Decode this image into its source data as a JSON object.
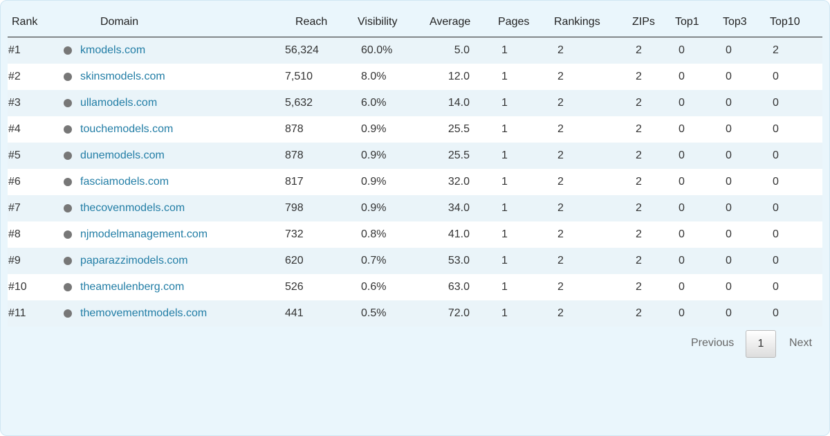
{
  "table": {
    "header": [
      "Rank",
      "Domain",
      "Reach",
      "Visibility",
      "Average",
      "Pages",
      "Rankings",
      "ZIPs",
      "Top1",
      "Top3",
      "Top10"
    ],
    "rows": [
      [
        "#1",
        "kmodels.com",
        "56,324",
        "60.0%",
        "5.0",
        "1",
        "2",
        "2",
        "0",
        "0",
        "2"
      ],
      [
        "#2",
        "skinsmodels.com",
        "7,510",
        "8.0%",
        "12.0",
        "1",
        "2",
        "2",
        "0",
        "0",
        "0"
      ],
      [
        "#3",
        "ullamodels.com",
        "5,632",
        "6.0%",
        "14.0",
        "1",
        "2",
        "2",
        "0",
        "0",
        "0"
      ],
      [
        "#4",
        "touchemodels.com",
        "878",
        "0.9%",
        "25.5",
        "1",
        "2",
        "2",
        "0",
        "0",
        "0"
      ],
      [
        "#5",
        "dunemodels.com",
        "878",
        "0.9%",
        "25.5",
        "1",
        "2",
        "2",
        "0",
        "0",
        "0"
      ],
      [
        "#6",
        "fasciamodels.com",
        "817",
        "0.9%",
        "32.0",
        "1",
        "2",
        "2",
        "0",
        "0",
        "0"
      ],
      [
        "#7",
        "thecovenmodels.com",
        "798",
        "0.9%",
        "34.0",
        "1",
        "2",
        "2",
        "0",
        "0",
        "0"
      ],
      [
        "#8",
        "njmodelmanagement.com",
        "732",
        "0.8%",
        "41.0",
        "1",
        "2",
        "2",
        "0",
        "0",
        "0"
      ],
      [
        "#9",
        "paparazzimodels.com",
        "620",
        "0.7%",
        "53.0",
        "1",
        "2",
        "2",
        "0",
        "0",
        "0"
      ],
      [
        "#10",
        "theameulenberg.com",
        "526",
        "0.6%",
        "63.0",
        "1",
        "2",
        "2",
        "0",
        "0",
        "0"
      ],
      [
        "#11",
        "themovementmodels.com",
        "441",
        "0.5%",
        "72.0",
        "1",
        "2",
        "2",
        "0",
        "0",
        "0"
      ]
    ]
  },
  "pagination": {
    "previous": "Previous",
    "page": "1",
    "next": "Next"
  }
}
